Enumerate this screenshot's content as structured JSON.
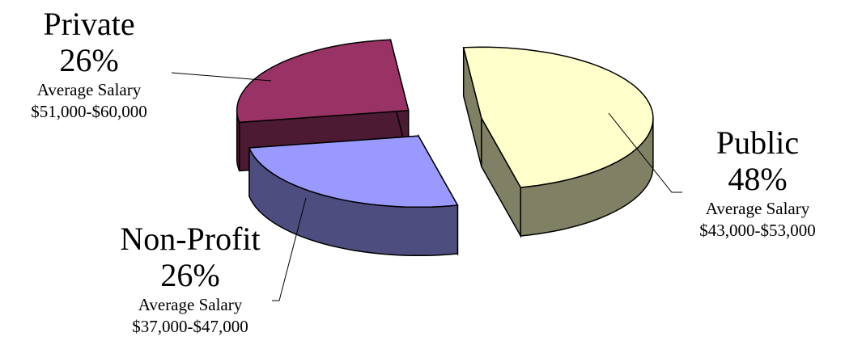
{
  "chart_data": {
    "type": "pie",
    "style": "3d-exploded",
    "slices": [
      {
        "label": "Public",
        "percent_label": "48%",
        "value": 48,
        "note_title": "Average Salary",
        "note_range": "$43,000-$53,000",
        "top_color": "#FFFFCC",
        "side_color": "#808065"
      },
      {
        "label": "Non-Profit",
        "percent_label": "26%",
        "value": 26,
        "note_title": "Average Salary",
        "note_range": "$37,000-$47,000",
        "top_color": "#9999FF",
        "side_color": "#4D4D80"
      },
      {
        "label": "Private",
        "percent_label": "26%",
        "value": 26,
        "note_title": "Average Salary",
        "note_range": "$51,000-$60,000",
        "top_color": "#993366",
        "side_color": "#4D1A33"
      }
    ],
    "legend": "none"
  }
}
